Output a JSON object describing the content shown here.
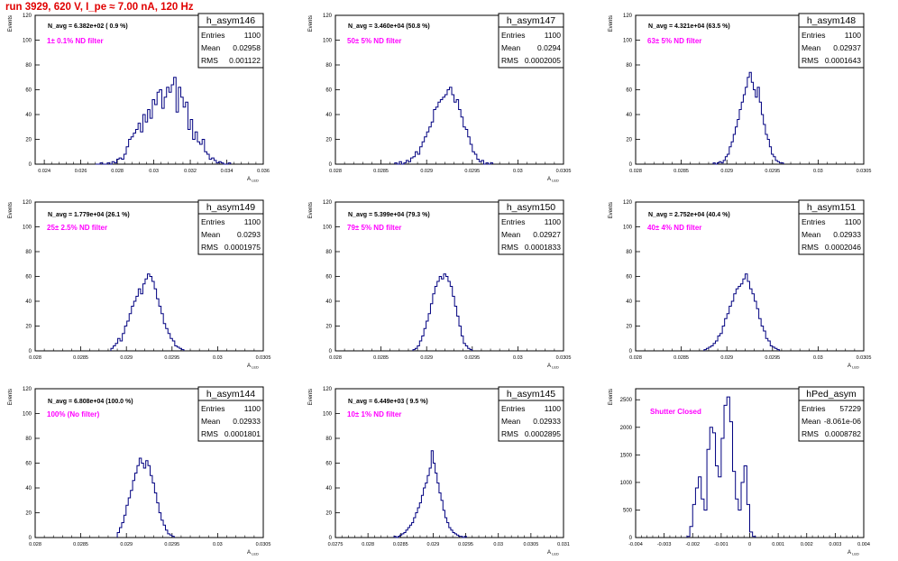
{
  "run_title": "run 3929,   620 V, I_pe ≈ 7.00 nA, 120 Hz",
  "colors": {
    "title": "#e00000",
    "annotation": "#ff00ff",
    "histogram": "#000080",
    "axis": "#000000",
    "grid": "#bbbbbb"
  },
  "chart_data": [
    {
      "type": "histogram",
      "name": "h_asym146",
      "stats": {
        "entries_label": "Entries",
        "entries": "1100",
        "mean_label": "Mean",
        "mean": "0.02958",
        "rms_label": "RMS",
        "rms": "0.001122"
      },
      "n_avg": "N_avg = 6.382e+02 ( 0.9 %)",
      "annotation": "1± 0.1% ND filter",
      "ylabel": "Events",
      "xlabel": "A_{LED}",
      "xlim": [
        0.0235,
        0.036
      ],
      "ylim": [
        0,
        120
      ],
      "xticks": [
        0.024,
        0.026,
        0.028,
        0.03,
        0.032,
        0.034,
        0.036
      ],
      "xticklabels": [
        "0.024",
        "0.026",
        "0.028",
        "0.03",
        "0.032",
        "0.034",
        "0.036"
      ],
      "yticks": [
        0,
        20,
        40,
        60,
        80,
        100,
        120
      ],
      "bins": {
        "x0": 0.0268,
        "width": 0.00013,
        "counts": [
          0,
          0,
          1,
          0,
          0,
          1,
          0,
          2,
          1,
          4,
          5,
          4,
          8,
          14,
          20,
          22,
          25,
          28,
          33,
          26,
          40,
          34,
          44,
          37,
          52,
          48,
          58,
          60,
          45,
          54,
          62,
          58,
          64,
          70,
          42,
          62,
          54,
          46,
          50,
          28,
          36,
          20,
          26,
          18,
          16,
          20,
          10,
          8,
          4,
          5,
          3,
          1,
          2,
          1,
          0,
          0,
          1
        ]
      }
    },
    {
      "type": "histogram",
      "name": "h_asym147",
      "stats": {
        "entries_label": "Entries",
        "entries": "1100",
        "mean_label": "Mean",
        "mean": "0.0294",
        "rms_label": "RMS",
        "rms": "0.0002005"
      },
      "n_avg": "N_avg = 3.460e+04 (50.8 %)",
      "annotation": "50± 5% ND filter",
      "ylabel": "Events",
      "xlabel": "A_{LED}",
      "xlim": [
        0.028,
        0.0305
      ],
      "ylim": [
        0,
        120
      ],
      "xticks": [
        0.028,
        0.0285,
        0.029,
        0.0295,
        0.03,
        0.0305
      ],
      "xticklabels": [
        "0.028",
        "0.0285",
        "0.029",
        "0.0295",
        "0.03",
        "0.0305"
      ],
      "yticks": [
        0,
        20,
        40,
        60,
        80,
        100,
        120
      ],
      "bins": {
        "x0": 0.02865,
        "width": 2.5e-05,
        "counts": [
          1,
          0,
          2,
          0,
          1,
          3,
          2,
          5,
          6,
          10,
          8,
          14,
          18,
          22,
          26,
          30,
          34,
          44,
          46,
          50,
          52,
          54,
          56,
          60,
          62,
          56,
          50,
          52,
          44,
          38,
          30,
          28,
          22,
          16,
          10,
          8,
          4,
          2,
          3,
          0,
          1,
          0,
          1
        ]
      }
    },
    {
      "type": "histogram",
      "name": "h_asym148",
      "stats": {
        "entries_label": "Entries",
        "entries": "1100",
        "mean_label": "Mean",
        "mean": "0.02937",
        "rms_label": "RMS",
        "rms": "0.0001643"
      },
      "n_avg": "N_avg = 4.321e+04 (63.5 %)",
      "annotation": "63± 5% ND filter",
      "ylabel": "Events",
      "xlabel": "",
      "xlim": [
        0.028,
        0.0305
      ],
      "ylim": [
        0,
        120
      ],
      "xticks": [
        0.028,
        0.0285,
        0.029,
        0.0295,
        0.03,
        0.0305
      ],
      "xticklabels": [
        "0.028",
        "0.0285",
        "0.029",
        "0.0295",
        "0.03",
        "0.0305"
      ],
      "yticks": [
        0,
        20,
        40,
        60,
        80,
        100,
        120
      ],
      "bins": {
        "x0": 0.02885,
        "width": 2.2e-05,
        "counts": [
          1,
          0,
          1,
          2,
          1,
          3,
          6,
          8,
          14,
          18,
          24,
          30,
          36,
          44,
          50,
          56,
          62,
          70,
          74,
          66,
          60,
          54,
          62,
          50,
          40,
          32,
          24,
          20,
          14,
          8,
          6,
          3,
          2,
          1,
          1
        ]
      }
    },
    {
      "type": "histogram",
      "name": "h_asym149",
      "stats": {
        "entries_label": "Entries",
        "entries": "1100",
        "mean_label": "Mean",
        "mean": "0.0293",
        "rms_label": "RMS",
        "rms": "0.0001975"
      },
      "n_avg": "N_avg = 1.779e+04 (26.1 %)",
      "annotation": "25± 2.5% ND filter",
      "ylabel": "Events",
      "xlabel": "A_{LED}",
      "xlim": [
        0.028,
        0.0305
      ],
      "ylim": [
        0,
        120
      ],
      "xticks": [
        0.028,
        0.0285,
        0.029,
        0.0295,
        0.03,
        0.0305
      ],
      "xticklabels": [
        "0.028",
        "0.0285",
        "0.029",
        "0.0295",
        "0.03",
        "0.0305"
      ],
      "yticks": [
        0,
        20,
        40,
        60,
        80,
        100,
        120
      ],
      "bins": {
        "x0": 0.02883,
        "width": 2.5e-05,
        "counts": [
          2,
          4,
          6,
          10,
          8,
          14,
          20,
          24,
          30,
          36,
          40,
          44,
          50,
          46,
          54,
          58,
          62,
          60,
          56,
          50,
          42,
          36,
          30,
          22,
          18,
          14,
          10,
          8,
          4,
          3,
          2,
          1
        ]
      }
    },
    {
      "type": "histogram",
      "name": "h_asym150",
      "stats": {
        "entries_label": "Entries",
        "entries": "1100",
        "mean_label": "Mean",
        "mean": "0.02927",
        "rms_label": "RMS",
        "rms": "0.0001833"
      },
      "n_avg": "N_avg = 5.399e+04 (79.3 %)",
      "annotation": "79± 5% ND filter",
      "ylabel": "Events",
      "xlabel": "A_{LED}",
      "xlim": [
        0.028,
        0.0305
      ],
      "ylim": [
        0,
        120
      ],
      "xticks": [
        0.028,
        0.0285,
        0.029,
        0.0295,
        0.03,
        0.0305
      ],
      "xticklabels": [
        "0.028",
        "0.0285",
        "0.029",
        "0.0295",
        "0.03",
        "0.0305"
      ],
      "yticks": [
        0,
        20,
        40,
        60,
        80,
        100,
        120
      ],
      "bins": {
        "x0": 0.02885,
        "width": 2.4e-05,
        "counts": [
          1,
          2,
          4,
          8,
          12,
          18,
          24,
          30,
          38,
          46,
          52,
          56,
          60,
          58,
          62,
          60,
          56,
          52,
          44,
          36,
          28,
          20,
          12,
          6,
          4,
          2,
          1
        ]
      }
    },
    {
      "type": "histogram",
      "name": "h_asym151",
      "stats": {
        "entries_label": "Entries",
        "entries": "1100",
        "mean_label": "Mean",
        "mean": "0.02933",
        "rms_label": "RMS",
        "rms": "0.0002046"
      },
      "n_avg": "N_avg = 2.752e+04 (40.4 %)",
      "annotation": "40± 4% ND filter",
      "ylabel": "Events",
      "xlabel": "A_{LED}",
      "xlim": [
        0.028,
        0.0305
      ],
      "ylim": [
        0,
        120
      ],
      "xticks": [
        0.028,
        0.0285,
        0.029,
        0.0295,
        0.03,
        0.0305
      ],
      "xticklabels": [
        "0.028",
        "0.0285",
        "0.029",
        "0.0295",
        "0.03",
        "0.0305"
      ],
      "yticks": [
        0,
        20,
        40,
        60,
        80,
        100,
        120
      ],
      "bins": {
        "x0": 0.02875,
        "width": 2.5e-05,
        "counts": [
          1,
          2,
          3,
          4,
          6,
          8,
          12,
          14,
          20,
          26,
          30,
          36,
          40,
          46,
          50,
          52,
          54,
          58,
          62,
          56,
          50,
          46,
          40,
          34,
          26,
          20,
          16,
          10,
          8,
          4,
          3,
          2,
          1
        ]
      }
    },
    {
      "type": "histogram",
      "name": "h_asym144",
      "stats": {
        "entries_label": "Entries",
        "entries": "1100",
        "mean_label": "Mean",
        "mean": "0.02933",
        "rms_label": "RMS",
        "rms": "0.0001801"
      },
      "n_avg": "N_avg = 6.808e+04 (100.0 %)",
      "annotation": "100% (No filter)",
      "ylabel": "Events",
      "xlabel": "A_{LED}",
      "xlim": [
        0.028,
        0.0305
      ],
      "ylim": [
        0,
        120
      ],
      "xticks": [
        0.028,
        0.0285,
        0.029,
        0.0295,
        0.03,
        0.0305
      ],
      "xticklabels": [
        "0.028",
        "0.0285",
        "0.029",
        "0.0295",
        "0.03",
        "0.0305"
      ],
      "yticks": [
        0,
        20,
        40,
        60,
        80,
        100,
        120
      ],
      "bins": {
        "x0": 0.0289,
        "width": 2.4e-05,
        "counts": [
          4,
          8,
          12,
          18,
          26,
          32,
          38,
          46,
          52,
          58,
          64,
          60,
          56,
          62,
          58,
          50,
          44,
          36,
          28,
          20,
          14,
          10,
          6,
          3,
          2,
          1
        ]
      }
    },
    {
      "type": "histogram",
      "name": "h_asym145",
      "stats": {
        "entries_label": "Entries",
        "entries": "1100",
        "mean_label": "Mean",
        "mean": "0.02933",
        "rms_label": "RMS",
        "rms": "0.0002895"
      },
      "n_avg": "N_avg = 6.449e+03 ( 9.5 %)",
      "annotation": "10± 1% ND filter",
      "ylabel": "Events",
      "xlabel": "A_{LED}",
      "xlim": [
        0.0275,
        0.031
      ],
      "ylim": [
        0,
        120
      ],
      "xticks": [
        0.0275,
        0.028,
        0.0285,
        0.029,
        0.0295,
        0.03,
        0.0305,
        0.031
      ],
      "xticklabels": [
        "0.0275",
        "0.028",
        "0.0285",
        "0.029",
        "0.0295",
        "0.03",
        "0.0305",
        "0.031"
      ],
      "yticks": [
        0,
        20,
        40,
        60,
        80,
        100,
        120
      ],
      "bins": {
        "x0": 0.0284,
        "width": 3e-05,
        "counts": [
          1,
          0,
          1,
          2,
          3,
          4,
          6,
          8,
          10,
          12,
          16,
          20,
          24,
          28,
          34,
          40,
          44,
          50,
          56,
          70,
          60,
          52,
          44,
          36,
          30,
          22,
          16,
          12,
          8,
          6,
          4,
          3,
          2,
          1,
          1,
          0,
          1
        ]
      }
    },
    {
      "type": "histogram",
      "name": "hPed_asym",
      "stats": {
        "entries_label": "Entries",
        "entries": "57229",
        "mean_label": "Mean",
        "mean": "-8.061e-06",
        "rms_label": "RMS",
        "rms": "0.0008782"
      },
      "n_avg": "",
      "annotation": "Shutter Closed",
      "ylabel": "Events",
      "xlabel": "A_{LED}",
      "xlim": [
        -0.004,
        0.004
      ],
      "ylim": [
        0,
        2700
      ],
      "xticks": [
        -0.004,
        -0.003,
        -0.002,
        -0.001,
        0,
        0.001,
        0.002,
        0.003,
        0.004
      ],
      "xticklabels": [
        "-0.004",
        "-0.003",
        "-0.002",
        "-0.001",
        "0",
        "0.001",
        "0.002",
        "0.003",
        "0.004"
      ],
      "yticks": [
        0,
        500,
        1000,
        1500,
        2000,
        2500
      ],
      "bins": {
        "x0": -0.0022,
        "width": 0.0001,
        "counts": [
          20,
          200,
          600,
          900,
          1100,
          700,
          500,
          1600,
          2000,
          1900,
          1300,
          1100,
          1800,
          2400,
          2550,
          2100,
          1200,
          700,
          500,
          1000,
          1300,
          600,
          100,
          20
        ]
      }
    }
  ]
}
